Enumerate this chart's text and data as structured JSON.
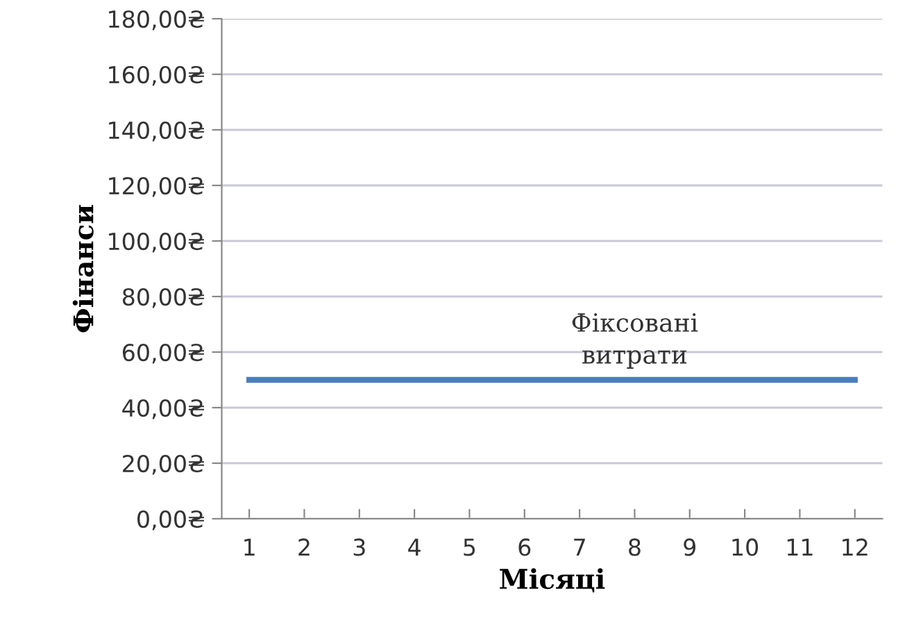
{
  "chart_data": {
    "type": "line",
    "xlabel": "Місяці",
    "ylabel": "Фінанси",
    "categories": [
      "1",
      "2",
      "3",
      "4",
      "5",
      "6",
      "7",
      "8",
      "9",
      "10",
      "11",
      "12"
    ],
    "series": [
      {
        "name": "Фіксовані\nвитрати",
        "color": "#4a7ebb",
        "values": [
          50,
          50,
          50,
          50,
          50,
          50,
          50,
          50,
          50,
          50,
          50,
          50
        ]
      }
    ],
    "ylim": [
      0,
      180
    ],
    "yticks": [
      {
        "value": 0,
        "label": "0,00₴"
      },
      {
        "value": 20,
        "label": "20,00₴"
      },
      {
        "value": 40,
        "label": "40,00₴"
      },
      {
        "value": 60,
        "label": "60,00₴"
      },
      {
        "value": 80,
        "label": "80,00₴"
      },
      {
        "value": 100,
        "label": "100,00₴"
      },
      {
        "value": 120,
        "label": "120,00₴"
      },
      {
        "value": 140,
        "label": "140,00₴"
      },
      {
        "value": 160,
        "label": "160,00₴"
      },
      {
        "value": 180,
        "label": "180,00₴"
      }
    ],
    "grid": "y",
    "legend": false,
    "marker": "none",
    "line_style": "solid"
  }
}
